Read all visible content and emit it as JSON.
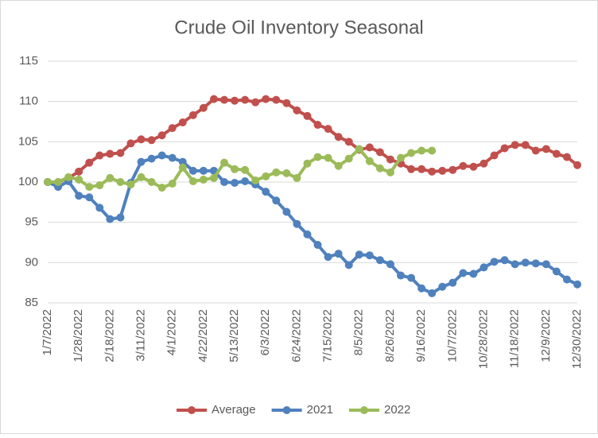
{
  "chart_data": {
    "type": "line",
    "title": "Crude Oil Inventory Seasonal",
    "categories": [
      "1/7/2022",
      null,
      null,
      "1/28/2022",
      null,
      null,
      "2/18/2022",
      null,
      null,
      "3/11/2022",
      null,
      null,
      "4/1/2022",
      null,
      null,
      "4/22/2022",
      null,
      null,
      "5/13/2022",
      null,
      null,
      "6/3/2022",
      null,
      null,
      "6/24/2022",
      null,
      null,
      "7/15/2022",
      null,
      null,
      "8/5/2022",
      null,
      null,
      "8/26/2022",
      null,
      null,
      "9/16/2022",
      null,
      null,
      "10/7/2022",
      null,
      null,
      "10/28/2022",
      null,
      null,
      "11/18/2022",
      null,
      null,
      "12/9/2022",
      null,
      null,
      "12/30/2022"
    ],
    "series": [
      {
        "name": "Average",
        "color": "#c0504d",
        "values": [
          100,
          100,
          100.5,
          101.3,
          102.4,
          103.3,
          103.5,
          103.6,
          104.8,
          105.3,
          105.2,
          105.8,
          106.7,
          107.4,
          108.3,
          109.2,
          110.3,
          110.2,
          110.1,
          110.2,
          109.9,
          110.3,
          110.2,
          109.8,
          108.9,
          108.2,
          107.1,
          106.6,
          105.6,
          105.0,
          104.0,
          104.3,
          103.7,
          102.8,
          102.3,
          101.6,
          101.6,
          101.3,
          101.4,
          101.5,
          102.0,
          101.9,
          102.3,
          103.3,
          104.2,
          104.6,
          104.6,
          103.9,
          104.1,
          103.5,
          103.1,
          102.1
        ]
      },
      {
        "name": "2021",
        "color": "#4f81bd",
        "values": [
          100,
          99.4,
          100.1,
          98.3,
          98.1,
          96.8,
          95.4,
          95.6,
          99.9,
          102.5,
          102.9,
          103.3,
          103.0,
          102.5,
          101.4,
          101.4,
          101.4,
          100.0,
          99.9,
          100.1,
          99.7,
          98.8,
          97.7,
          96.3,
          94.8,
          93.5,
          92.2,
          90.7,
          91.1,
          89.7,
          91.0,
          90.9,
          90.3,
          89.8,
          88.4,
          88.1,
          86.8,
          86.2,
          87.0,
          87.5,
          88.7,
          88.6,
          89.4,
          90.1,
          90.3,
          89.8,
          90.0,
          89.9,
          89.8,
          88.9,
          87.9,
          87.3
        ]
      },
      {
        "name": "2022",
        "color": "#9bbb59",
        "values": [
          100,
          100.0,
          100.6,
          100.3,
          99.4,
          99.6,
          100.5,
          100.0,
          99.7,
          100.6,
          100.0,
          99.3,
          99.8,
          101.8,
          100.1,
          100.3,
          100.5,
          102.4,
          101.6,
          101.5,
          100.2,
          100.7,
          101.2,
          101.1,
          100.5,
          102.3,
          103.1,
          103.0,
          102.0,
          102.9,
          104.1,
          102.6,
          101.7,
          101.2,
          103.0,
          103.6,
          103.9,
          103.9,
          null,
          null,
          null,
          null,
          null,
          null,
          null,
          null,
          null,
          null,
          null,
          null,
          null,
          null
        ]
      }
    ],
    "ylim": [
      85,
      115
    ],
    "yticks": [
      85,
      90,
      95,
      100,
      105,
      110,
      115
    ],
    "grid": true,
    "legend": "bottom"
  }
}
